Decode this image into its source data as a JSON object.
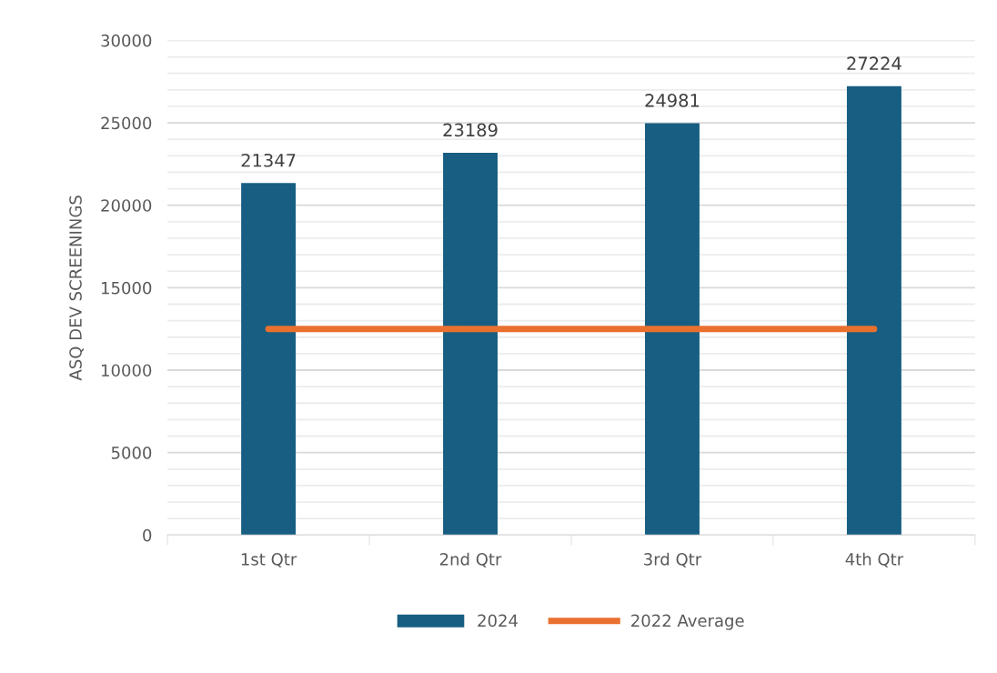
{
  "chart_data": {
    "type": "bar",
    "ylabel": "ASQ DEV SCREENINGS",
    "categories": [
      "1st Qtr",
      "2nd Qtr",
      "3rd Qtr",
      "4th Qtr"
    ],
    "series": [
      {
        "name": "2024",
        "color": "#175e82",
        "values": [
          21347,
          23189,
          24981,
          27224
        ],
        "value_labels": [
          "21347",
          "23189",
          "24981",
          "27224"
        ]
      },
      {
        "name": "2022 Average",
        "type": "line",
        "color": "#ea7030",
        "values": [
          12500,
          12500,
          12500,
          12500
        ]
      }
    ],
    "ylim": [
      0,
      30000
    ],
    "yticks": [
      0,
      {
        "value": 1000,
        "label": null
      },
      {
        "value": 2000,
        "label": null
      },
      {
        "value": 3000,
        "label": null
      },
      {
        "value": 4000,
        "label": null
      },
      5000,
      {
        "value": 6000,
        "label": null
      },
      {
        "value": 7000,
        "label": null
      },
      {
        "value": 8000,
        "label": null
      },
      {
        "value": 9000,
        "label": null
      },
      10000,
      {
        "value": 11000,
        "label": null
      },
      {
        "value": 12000,
        "label": null
      },
      {
        "value": 13000,
        "label": null
      },
      {
        "value": 14000,
        "label": null
      },
      15000,
      {
        "value": 16000,
        "label": null
      },
      {
        "value": 17000,
        "label": null
      },
      {
        "value": 18000,
        "label": null
      },
      {
        "value": 19000,
        "label": null
      },
      20000,
      {
        "value": 21000,
        "label": null
      },
      {
        "value": 22000,
        "label": null
      },
      {
        "value": 23000,
        "label": null
      },
      {
        "value": 24000,
        "label": null
      },
      25000,
      {
        "value": 26000,
        "label": null
      },
      {
        "value": 27000,
        "label": null
      },
      {
        "value": 28000,
        "label": null
      },
      {
        "value": 29000,
        "label": null
      },
      30000
    ],
    "grid": "y",
    "legend": "bottom"
  }
}
